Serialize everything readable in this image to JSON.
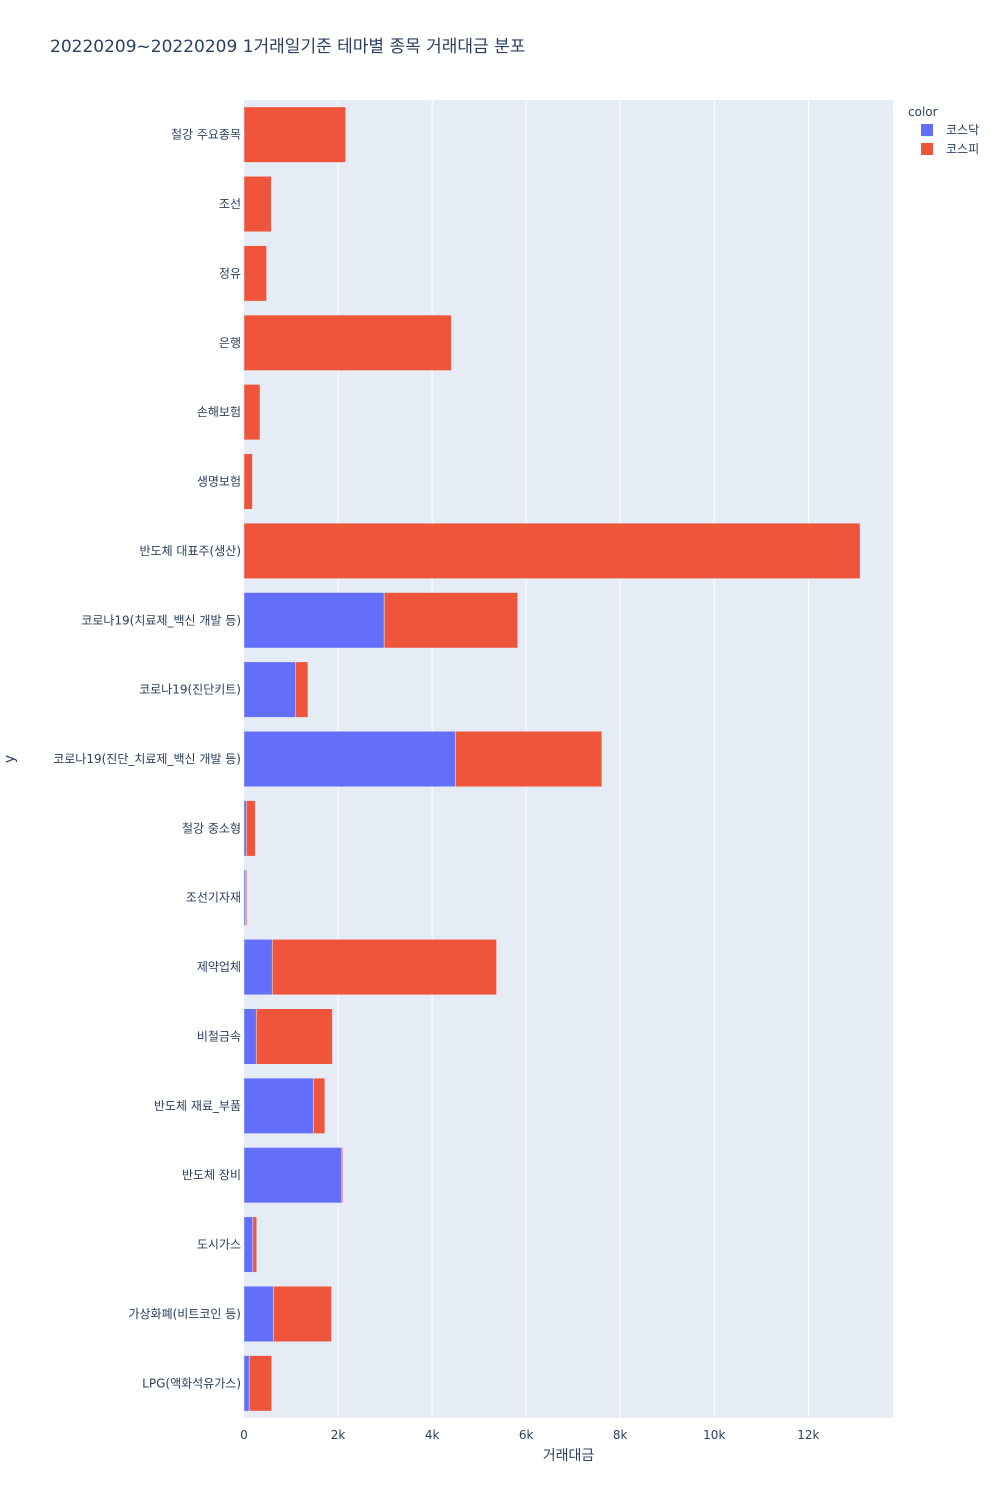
{
  "chart_data": {
    "type": "bar",
    "orientation": "horizontal",
    "barmode": "stack",
    "title": "20220209~20220209 1거래일기준 테마별 종목 거래대금 분포",
    "xlabel": "거래대금",
    "ylabel": "y",
    "xlim": [
      0,
      13800
    ],
    "xticks": [
      {
        "value": 0,
        "label": "0"
      },
      {
        "value": 2000,
        "label": "2k"
      },
      {
        "value": 4000,
        "label": "4k"
      },
      {
        "value": 6000,
        "label": "6k"
      },
      {
        "value": 8000,
        "label": "8k"
      },
      {
        "value": 10000,
        "label": "10k"
      },
      {
        "value": 12000,
        "label": "12k"
      }
    ],
    "grid": true,
    "legend": {
      "title": "color",
      "placement": "top-right"
    },
    "categories": [
      "철강 주요종목",
      "조선",
      "정유",
      "은행",
      "손해보험",
      "생명보험",
      "반도체 대표주(생산)",
      "코로나19(치료제_백신 개발 등)",
      "코로나19(진단키트)",
      "코로나19(진단_치료제_백신 개발 등)",
      "철강 중소형",
      "조선기자재",
      "제약업체",
      "비철금속",
      "반도체 재료_부품",
      "반도체 장비",
      "도시가스",
      "가상화폐(비트코인 등)",
      "LPG(액화석유가스)"
    ],
    "series": [
      {
        "name": "코스닥",
        "color": "#636efa",
        "values": [
          0,
          0,
          0,
          0,
          0,
          0,
          0,
          2980,
          1100,
          4500,
          50,
          30,
          600,
          260,
          1480,
          2080,
          190,
          630,
          110
        ]
      },
      {
        "name": "코스피",
        "color": "#ef553b",
        "values": [
          2160,
          580,
          480,
          4410,
          340,
          180,
          13100,
          2840,
          260,
          3110,
          190,
          30,
          4770,
          1620,
          240,
          20,
          80,
          1230,
          480
        ]
      }
    ]
  }
}
